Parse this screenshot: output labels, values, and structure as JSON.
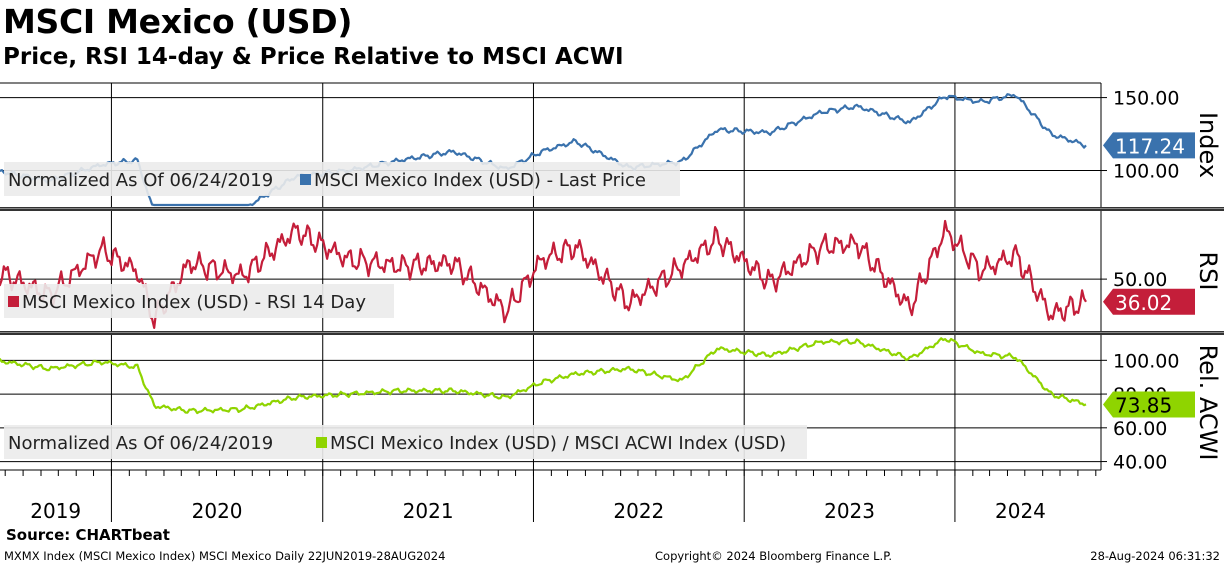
{
  "title": "MSCI Mexico (USD)",
  "subtitle": "Price, RSI 14-day & Price Relative to MSCI ACWI",
  "source": "Source: CHARTbeat",
  "footer": {
    "left": "MXMX Index (MSCI Mexico Index) MSCI Mexico  Daily 22JUN2019-28AUG2024",
    "center": "Copyright© 2024 Bloomberg Finance L.P.",
    "right": "28-Aug-2024 06:31:32"
  },
  "colors": {
    "price": "#3a72ad",
    "rsi": "#c41e3a",
    "rel": "#8fd400",
    "legend_bg": "#ebebeb",
    "separator": "#333333"
  },
  "chart_data": [
    {
      "type": "line",
      "panel": "price",
      "ylabel": "Index",
      "ylim": [
        75,
        160
      ],
      "yticks": [
        100,
        150
      ],
      "ytick_labels": [
        "100.00",
        "150.00"
      ],
      "grid": true,
      "last_value_label": "117.24",
      "legend": [
        "Normalized As Of 06/24/2019",
        "MSCI Mexico Index (USD) - Last Price"
      ],
      "x": [
        "2019-06",
        "2019-09",
        "2019-12",
        "2020-02",
        "2020-03",
        "2020-05",
        "2020-08",
        "2020-11",
        "2021-02",
        "2021-05",
        "2021-08",
        "2021-11",
        "2022-01",
        "2022-03",
        "2022-06",
        "2022-09",
        "2022-11",
        "2023-02",
        "2023-05",
        "2023-07",
        "2023-10",
        "2023-12",
        "2024-02",
        "2024-04",
        "2024-06",
        "2024-08"
      ],
      "series": [
        {
          "name": "MSCI Mexico Index (USD) - Last Price",
          "values": [
            100,
            93,
            104,
            107,
            71,
            74,
            73,
            96,
            100,
            107,
            113,
            101,
            113,
            120,
            102,
            106,
            128,
            126,
            140,
            144,
            133,
            151,
            147,
            152,
            125,
            117.24
          ]
        }
      ]
    },
    {
      "type": "line",
      "panel": "rsi",
      "ylabel": "RSI",
      "ylim": [
        18,
        92
      ],
      "yticks": [
        50
      ],
      "ytick_labels": [
        "50.00"
      ],
      "grid": true,
      "last_value_label": "36.02",
      "legend": [
        "MSCI Mexico Index (USD) - RSI 14 Day"
      ],
      "x": [
        "2019-06",
        "2019-09",
        "2019-12",
        "2020-02",
        "2020-03",
        "2020-05",
        "2020-08",
        "2020-11",
        "2021-02",
        "2021-05",
        "2021-08",
        "2021-11",
        "2022-01",
        "2022-03",
        "2022-06",
        "2022-09",
        "2022-11",
        "2023-02",
        "2023-05",
        "2023-07",
        "2023-10",
        "2023-12",
        "2024-02",
        "2024-04",
        "2024-06",
        "2024-08"
      ],
      "series": [
        {
          "name": "MSCI Mexico Index (USD) - RSI 14 Day",
          "values": [
            55,
            40,
            68,
            55,
            25,
            60,
            52,
            80,
            62,
            58,
            60,
            30,
            62,
            70,
            35,
            58,
            75,
            48,
            70,
            72,
            32,
            80,
            55,
            65,
            28,
            36.02
          ]
        }
      ]
    },
    {
      "type": "line",
      "panel": "relative",
      "ylabel": "Rel. ACWI",
      "ylim": [
        35,
        115
      ],
      "yticks": [
        40,
        60,
        80,
        100
      ],
      "ytick_labels": [
        "40.00",
        "60.00",
        "80.00",
        "100.00"
      ],
      "grid": true,
      "last_value_label": "73.85",
      "legend": [
        "Normalized As Of 06/24/2019",
        "MSCI Mexico Index (USD) / MSCI ACWI Index (USD)"
      ],
      "x": [
        "2019-06",
        "2019-09",
        "2019-12",
        "2020-02",
        "2020-03",
        "2020-05",
        "2020-08",
        "2020-11",
        "2021-02",
        "2021-05",
        "2021-08",
        "2021-11",
        "2022-01",
        "2022-03",
        "2022-06",
        "2022-09",
        "2022-11",
        "2023-02",
        "2023-05",
        "2023-07",
        "2023-10",
        "2023-12",
        "2024-02",
        "2024-04",
        "2024-06",
        "2024-08"
      ],
      "series": [
        {
          "name": "MSCI Mexico Index (USD) / MSCI ACWI Index (USD)",
          "values": [
            100,
            95,
            99,
            96,
            73,
            70,
            71,
            78,
            80,
            82,
            82,
            78,
            87,
            92,
            95,
            88,
            107,
            103,
            111,
            111,
            101,
            113,
            104,
            102,
            80,
            73.85
          ]
        }
      ]
    }
  ],
  "x_axis": {
    "year_labels": [
      "2019",
      "2020",
      "2021",
      "2022",
      "2023",
      "2024"
    ]
  }
}
